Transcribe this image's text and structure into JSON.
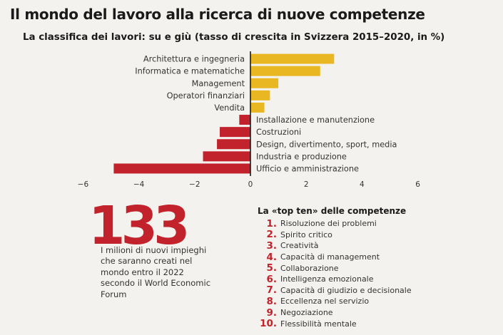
{
  "header": {
    "title": "Il mondo del lavoro alla ricerca di nuove competenze"
  },
  "chart_data": {
    "type": "bar",
    "orientation": "horizontal",
    "title": "La classifica dei lavori: su e giù (tasso di crescita in Svizzera 2015–2020, in %)",
    "categories": [
      "Architettura e ingegneria",
      "Informatica e matematiche",
      "Management",
      "Operatori finanziari",
      "Vendita",
      "Installazione e manutenzione",
      "Costruzioni",
      "Design, divertimento, sport, media",
      "Industria e produzione",
      "Ufficio e amministrazione"
    ],
    "values": [
      3.0,
      2.5,
      1.0,
      0.7,
      0.5,
      -0.4,
      -1.1,
      -1.2,
      -1.7,
      -4.9
    ],
    "xlim": [
      -6,
      6
    ],
    "xticks": [
      "−6",
      "−4",
      "−2",
      "0",
      "2",
      "4",
      "6"
    ],
    "colors": {
      "positive": "#e8b722",
      "negative": "#c1222b"
    },
    "grid": false
  },
  "stat": {
    "value": "133",
    "description": "I milioni di nuovi impieghi che saranno creati nel mondo entro il 2022 secondo il World Economic Forum"
  },
  "top_ten": {
    "title": "La «top ten» delle competenze",
    "items": [
      {
        "rank": "1.",
        "label": "Risoluzione dei problemi"
      },
      {
        "rank": "2.",
        "label": "Spirito critico"
      },
      {
        "rank": "3.",
        "label": "Creatività"
      },
      {
        "rank": "4.",
        "label": "Capacità di management"
      },
      {
        "rank": "5.",
        "label": "Collaborazione"
      },
      {
        "rank": "6.",
        "label": "Intelligenza emozionale"
      },
      {
        "rank": "7.",
        "label": "Capacità di giudizio e decisionale"
      },
      {
        "rank": "8.",
        "label": "Eccellenza nel servizio"
      },
      {
        "rank": "9.",
        "label": "Negoziazione"
      },
      {
        "rank": "10.",
        "label": "Flessibilità mentale"
      }
    ]
  }
}
